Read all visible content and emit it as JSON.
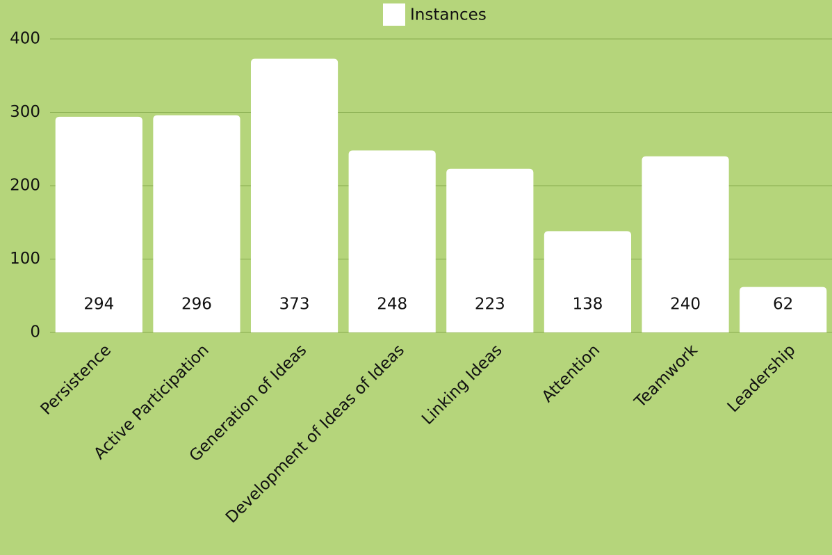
{
  "chart_data": {
    "type": "bar",
    "categories": [
      "Persistence",
      "Active Participation",
      "Generation of Ideas",
      "Development of Ideas of Ideas",
      "Linking Ideas",
      "Attention",
      "Teamwork",
      "Leadership"
    ],
    "series": [
      {
        "name": "Instances",
        "color": "#ffffff",
        "values": [
          294,
          296,
          373,
          248,
          223,
          138,
          240,
          62
        ]
      }
    ],
    "ylim": [
      0,
      400
    ],
    "yticks": [
      0,
      100,
      200,
      300,
      400
    ],
    "grid": true,
    "legend": "top"
  }
}
